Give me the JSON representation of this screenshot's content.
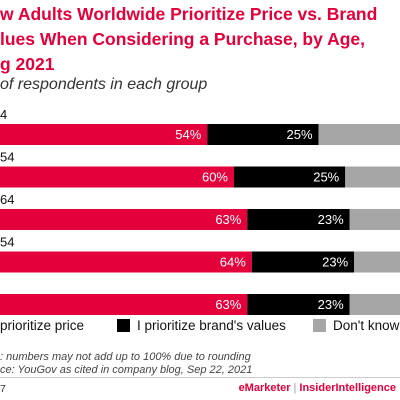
{
  "title_lines": [
    "w Adults Worldwide Prioritize Price vs. Brand",
    "lues When Considering a Purchase, by Age,",
    "g 2021"
  ],
  "subtitle": "of respondents in each group",
  "chart_data": {
    "type": "bar",
    "orientation": "horizontal",
    "stacked": true,
    "categories": [
      "4",
      "54",
      "64",
      "54",
      ""
    ],
    "series": [
      {
        "name": "prioritize price",
        "color": "#e4003b",
        "values": [
          54,
          60,
          63,
          64,
          63
        ],
        "labels": [
          "54%",
          "60%",
          "63%",
          "64%",
          "63%"
        ]
      },
      {
        "name": "I prioritize brand's values",
        "color": "#000000",
        "values": [
          25,
          25,
          23,
          23,
          23
        ],
        "labels": [
          "25%",
          "25%",
          "23%",
          "23%",
          "23%"
        ]
      },
      {
        "name": "Don't know",
        "color": "#a6a6a6",
        "values": [
          21,
          15,
          14,
          13,
          14
        ],
        "labels": [
          "",
          "",
          "",
          "",
          ""
        ]
      }
    ],
    "xlim": [
      0,
      100
    ],
    "grid": false,
    "legend": "bottom"
  },
  "notes": [
    ": numbers may not add up to 100% due to rounding",
    "ce: YouGov as cited in company blog, Sep 22, 2021"
  ],
  "footer": {
    "id": "7",
    "brand_left": "eMarketer",
    "separator": "|",
    "brand_right": "InsiderIntelligence"
  },
  "colors": {
    "accent": "#e4003b",
    "dark": "#000000",
    "neutral": "#a6a6a6"
  }
}
